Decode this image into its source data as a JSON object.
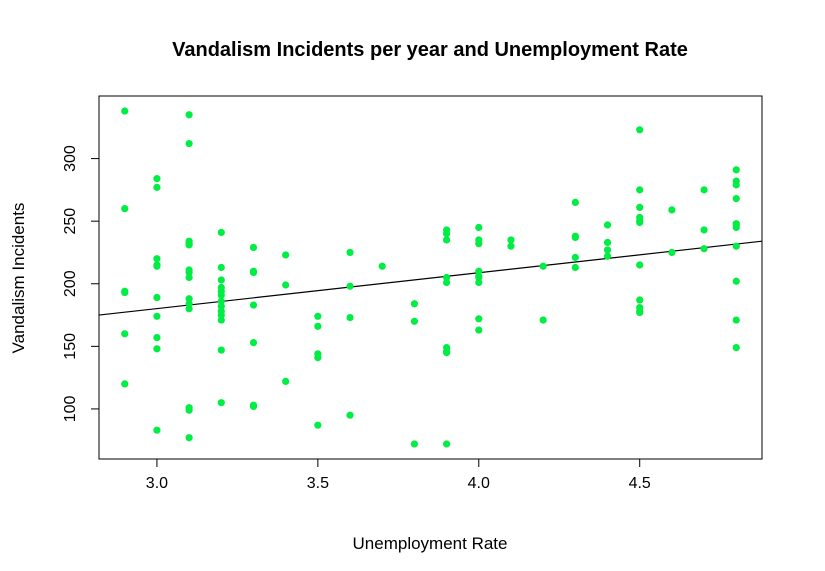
{
  "chart_data": {
    "type": "scatter",
    "title": "Vandalism Incidents per year and Unemployment Rate",
    "xlabel": "Unemployment Rate",
    "ylabel": "Vandalism Incidents",
    "xlim": [
      2.82,
      4.88
    ],
    "ylim": [
      60,
      350
    ],
    "xticks": [
      3.0,
      3.5,
      4.0,
      4.5
    ],
    "xtick_labels": [
      "3.0",
      "3.5",
      "4.0",
      "4.5"
    ],
    "yticks": [
      100,
      150,
      200,
      250,
      300
    ],
    "ytick_labels": [
      "100",
      "150",
      "200",
      "250",
      "300"
    ],
    "grid": false,
    "legend": "none",
    "point_color": "#00ee44",
    "line_color": "#000000",
    "trend_line": {
      "x": [
        2.82,
        4.88
      ],
      "y": [
        175,
        234
      ]
    },
    "series": [
      {
        "x": [
          2.9,
          2.9,
          2.9,
          2.9,
          2.9,
          2.9,
          3.0,
          3.0,
          3.0,
          3.0,
          3.0,
          3.0,
          3.0,
          3.0,
          3.0,
          3.0,
          3.1,
          3.1,
          3.1,
          3.1,
          3.1,
          3.1,
          3.1,
          3.1,
          3.1,
          3.1,
          3.1,
          3.1,
          3.1,
          3.1,
          3.2,
          3.2,
          3.2,
          3.2,
          3.2,
          3.2,
          3.2,
          3.2,
          3.2,
          3.2,
          3.2,
          3.2,
          3.2,
          3.3,
          3.3,
          3.3,
          3.3,
          3.3,
          3.3,
          3.3,
          3.4,
          3.4,
          3.4,
          3.5,
          3.5,
          3.5,
          3.5,
          3.5,
          3.6,
          3.6,
          3.6,
          3.6,
          3.7,
          3.8,
          3.8,
          3.8,
          3.9,
          3.9,
          3.9,
          3.9,
          3.9,
          3.9,
          3.9,
          3.9,
          3.9,
          4.0,
          4.0,
          4.0,
          4.0,
          4.0,
          4.0,
          4.0,
          4.0,
          4.0,
          4.1,
          4.1,
          4.2,
          4.2,
          4.3,
          4.3,
          4.3,
          4.3,
          4.3,
          4.4,
          4.4,
          4.4,
          4.4,
          4.5,
          4.5,
          4.5,
          4.5,
          4.5,
          4.5,
          4.5,
          4.5,
          4.5,
          4.5,
          4.5,
          4.6,
          4.6,
          4.7,
          4.7,
          4.7,
          4.8,
          4.8,
          4.8,
          4.8,
          4.8,
          4.8,
          4.8,
          4.8,
          4.8,
          4.8,
          4.8
        ],
        "y": [
          338,
          260,
          194,
          193,
          160,
          120,
          284,
          277,
          220,
          214,
          189,
          174,
          157,
          148,
          83,
          215,
          335,
          312,
          234,
          231,
          211,
          205,
          188,
          180,
          101,
          99,
          77,
          232,
          209,
          184,
          241,
          213,
          203,
          197,
          194,
          191,
          186,
          182,
          178,
          175,
          171,
          147,
          105,
          229,
          210,
          209,
          183,
          153,
          103,
          102,
          223,
          199,
          122,
          174,
          166,
          144,
          141,
          87,
          225,
          198,
          173,
          95,
          214,
          184,
          170,
          72,
          243,
          240,
          235,
          205,
          201,
          149,
          146,
          145,
          72,
          245,
          235,
          232,
          210,
          206,
          201,
          172,
          163,
          205,
          235,
          230,
          214,
          171,
          265,
          238,
          237,
          221,
          213,
          247,
          233,
          227,
          222,
          323,
          275,
          261,
          253,
          250,
          215,
          187,
          181,
          178,
          177,
          249,
          259,
          225,
          275,
          243,
          228,
          291,
          282,
          279,
          268,
          248,
          245,
          230,
          202,
          171,
          149,
          247
        ]
      }
    ]
  }
}
